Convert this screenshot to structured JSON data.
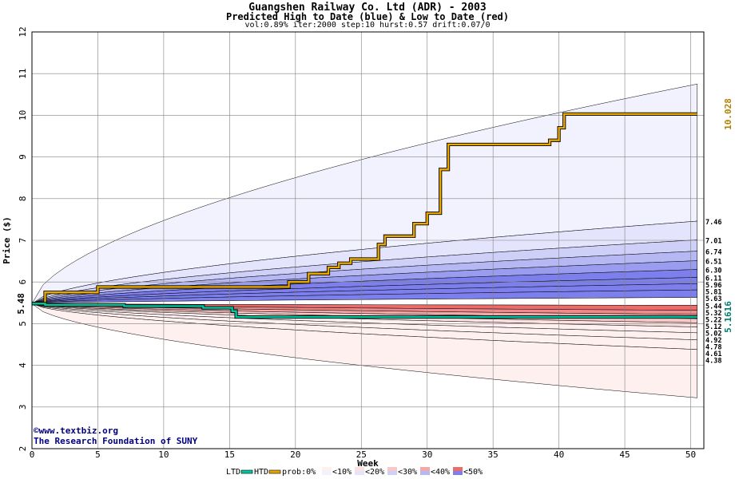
{
  "title": "Guangshen Railway Co. Ltd (ADR) - 2003",
  "subtitle": "Predicted High to Date (blue) &  Low to Date (red)",
  "params": "vol:0.89% iter:2000 step:10 hurst:0.57 drift:0.07/0",
  "watermark": {
    "line1": "©www.textbiz.org",
    "line2": "The Research Foundation of SUNY"
  },
  "colors": {
    "htd": "#e8a800",
    "ltd": "#00c8a0",
    "high_value_label": "#b08000",
    "low_value_label": "#008070",
    "grid": "#808080",
    "band_blue": [
      "#f2f2ff",
      "#e4e4fc",
      "#cfd0f8",
      "#b6b8f4",
      "#9a9cf0",
      "#7c7fec"
    ],
    "band_red": [
      "#fff0f0",
      "#fde0e0",
      "#f8c8c8",
      "#f4a8a8",
      "#f08a8a",
      "#ec6c6c"
    ]
  },
  "chart_data": {
    "type": "line",
    "title": "Guangshen Railway Co. Ltd (ADR) - 2003",
    "subtitle": "Predicted High to Date (blue) &  Low to Date (red)",
    "xlabel": "Week",
    "ylabel": "Price ($)",
    "xlim": [
      0,
      51
    ],
    "ylim": [
      2,
      12
    ],
    "xticks": [
      0,
      5,
      10,
      15,
      20,
      25,
      30,
      35,
      40,
      45,
      50
    ],
    "yticks": [
      2,
      3,
      4,
      5,
      6,
      7,
      8,
      9,
      10,
      11,
      12
    ],
    "grid": true,
    "start_price": 5.48,
    "start_label": "5.48",
    "high_final": 10.028,
    "high_final_label": "10.028",
    "low_final": 5.1616,
    "low_final_label": "5.1616",
    "right_labels": [
      "7.46",
      "7.01",
      "6.74",
      "6.51",
      "6.30",
      "6.11",
      "5.96",
      "5.81",
      "5.63",
      "5.44",
      "5.32",
      "5.22",
      "5.12",
      "5.02",
      "4.92",
      "4.78",
      "4.61",
      "4.38"
    ],
    "band_levels_high": [
      10.75,
      7.46,
      7.01,
      6.74,
      6.51,
      6.3,
      6.11,
      5.96,
      5.81,
      5.63
    ],
    "band_levels_low": [
      5.44,
      5.32,
      5.22,
      5.12,
      5.02,
      4.92,
      4.78,
      4.61,
      4.38,
      3.22
    ],
    "series": [
      {
        "name": "HTD",
        "x": [
          0,
          1,
          1,
          5,
          5,
          19.5,
          19.5,
          21,
          21,
          22.5,
          22.5,
          23.3,
          23.3,
          24.2,
          24.2,
          26.3,
          26.3,
          26.8,
          26.8,
          29,
          29,
          30,
          30,
          31,
          31,
          31.6,
          31.6,
          39.3,
          39.3,
          40,
          40,
          40.4,
          40.4,
          50.5
        ],
        "y": [
          5.48,
          5.48,
          5.75,
          5.75,
          5.88,
          5.88,
          6.0,
          6.0,
          6.2,
          6.2,
          6.35,
          6.35,
          6.45,
          6.45,
          6.55,
          6.55,
          6.9,
          6.9,
          7.1,
          7.1,
          7.4,
          7.4,
          7.65,
          7.65,
          8.7,
          8.7,
          9.3,
          9.3,
          9.4,
          9.4,
          9.7,
          9.7,
          10.03,
          10.03
        ]
      },
      {
        "name": "LTD",
        "x": [
          0,
          1,
          1,
          7,
          7,
          13,
          13,
          15.2,
          15.2,
          15.5,
          15.5,
          50.5
        ],
        "y": [
          5.48,
          5.48,
          5.45,
          5.45,
          5.42,
          5.42,
          5.38,
          5.38,
          5.3,
          5.3,
          5.16,
          5.16
        ]
      }
    ],
    "legend": {
      "position": "bottom",
      "items": [
        "LTD",
        "HTD",
        "prob:0%",
        "<10%",
        "<20%",
        "<30%",
        "<40%",
        "<50%"
      ]
    }
  }
}
